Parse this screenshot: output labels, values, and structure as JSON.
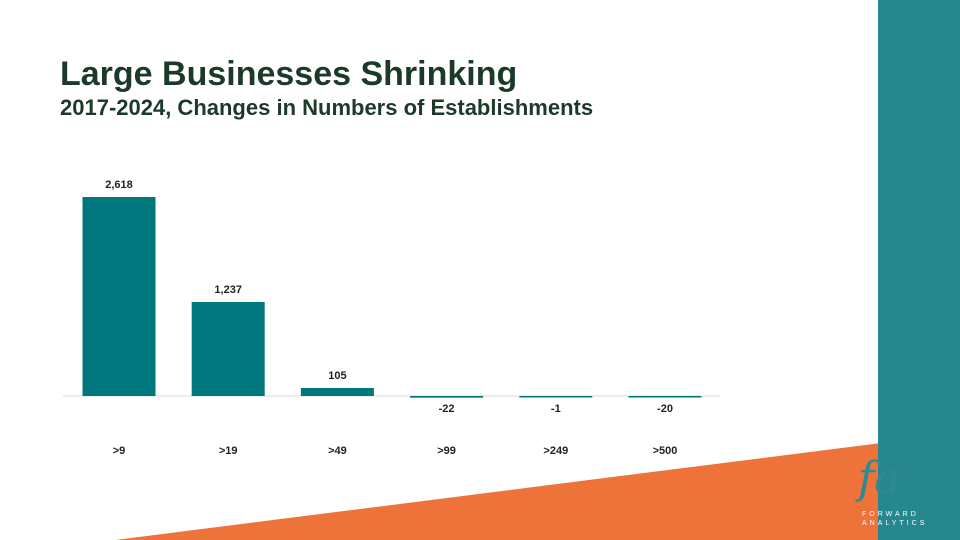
{
  "title": "Large Businesses Shrinking",
  "subtitle": "2017-2024, Changes in Numbers of Establishments",
  "colors": {
    "bar": "#00777d",
    "teal_band": "#26878f",
    "orange": "#ee733a",
    "axis": "#d9d9d9",
    "text": "#1b3a2a"
  },
  "logo": {
    "mark": "fa",
    "line1": "FORWARD",
    "line2": "ANALYTICS"
  },
  "chart_data": {
    "type": "bar",
    "categories": [
      ">9",
      ">19",
      ">49",
      ">99",
      ">249",
      ">500"
    ],
    "values": [
      2618,
      1237,
      105,
      -22,
      -1,
      -20
    ],
    "data_labels": [
      "2,618",
      "1,237",
      "105",
      "-22",
      "-1",
      "-20"
    ],
    "title": "",
    "xlabel": "",
    "ylabel": "",
    "ylim": [
      -200,
      2618
    ],
    "grid": false,
    "legend": "none"
  }
}
